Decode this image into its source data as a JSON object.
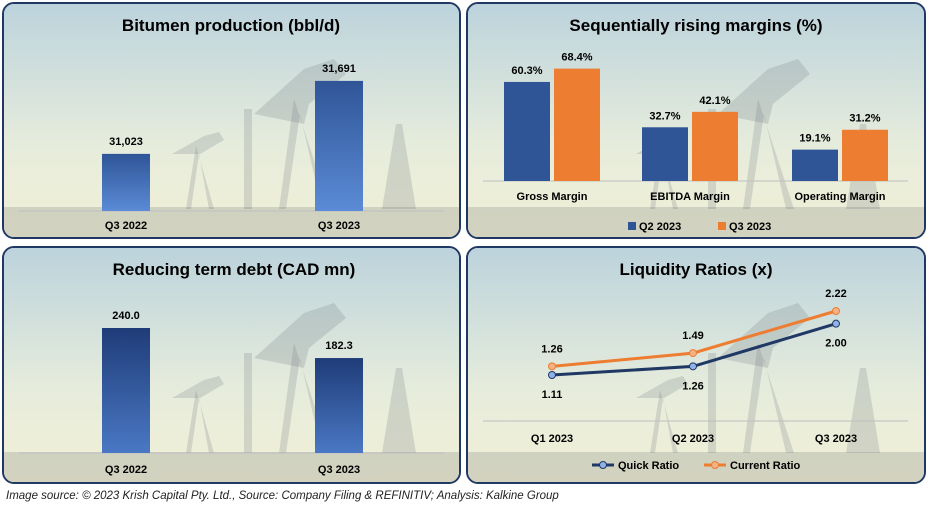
{
  "caption": "Image source: © 2023 Krish Capital Pty. Ltd., Source: Company Filing & REFINITIV; Analysis: Kalkine Group",
  "colors": {
    "blue": "#2f5597",
    "orange": "#ed7d31",
    "navy": "#1f3864",
    "quick": "#203864",
    "current": "#ed7d31"
  },
  "chart_data": [
    {
      "type": "bar",
      "title": "Bitumen production (bbl/d)",
      "categories": [
        "Q3 2022",
        "Q3 2023"
      ],
      "values": [
        31023,
        31691
      ],
      "value_labels": [
        "31,023",
        "31,691"
      ],
      "ylim": [
        30500,
        31800
      ]
    },
    {
      "type": "bar",
      "title": "Sequentially rising margins (%)",
      "categories": [
        "Gross Margin",
        "EBITDA Margin",
        "Operating Margin"
      ],
      "series": [
        {
          "name": "Q2 2023",
          "values": [
            60.3,
            32.7,
            19.1
          ],
          "value_labels": [
            "60.3%",
            "32.7%",
            "19.1%"
          ]
        },
        {
          "name": "Q3 2023",
          "values": [
            68.4,
            42.1,
            31.2
          ],
          "value_labels": [
            "68.4%",
            "42.1%",
            "31.2%"
          ]
        }
      ],
      "ylim": [
        0,
        70
      ],
      "legend": "bottom"
    },
    {
      "type": "bar",
      "title": "Reducing term debt (CAD mn)",
      "categories": [
        "Q3 2022",
        "Q3 2023"
      ],
      "values": [
        240.0,
        182.3
      ],
      "value_labels": [
        "240.0",
        "182.3"
      ],
      "ylim": [
        0,
        240
      ]
    },
    {
      "type": "line",
      "title": "Liquidity Ratios (x)",
      "categories": [
        "Q1 2023",
        "Q2 2023",
        "Q3 2023"
      ],
      "series": [
        {
          "name": "Quick Ratio",
          "values": [
            1.11,
            1.26,
            2.0
          ],
          "value_labels": [
            "1.11",
            "1.26",
            "2.00"
          ]
        },
        {
          "name": "Current Ratio",
          "values": [
            1.26,
            1.49,
            2.22
          ],
          "value_labels": [
            "1.26",
            "1.49",
            "2.22"
          ]
        }
      ],
      "ylim": [
        0.5,
        2.5
      ],
      "legend": "bottom"
    }
  ]
}
